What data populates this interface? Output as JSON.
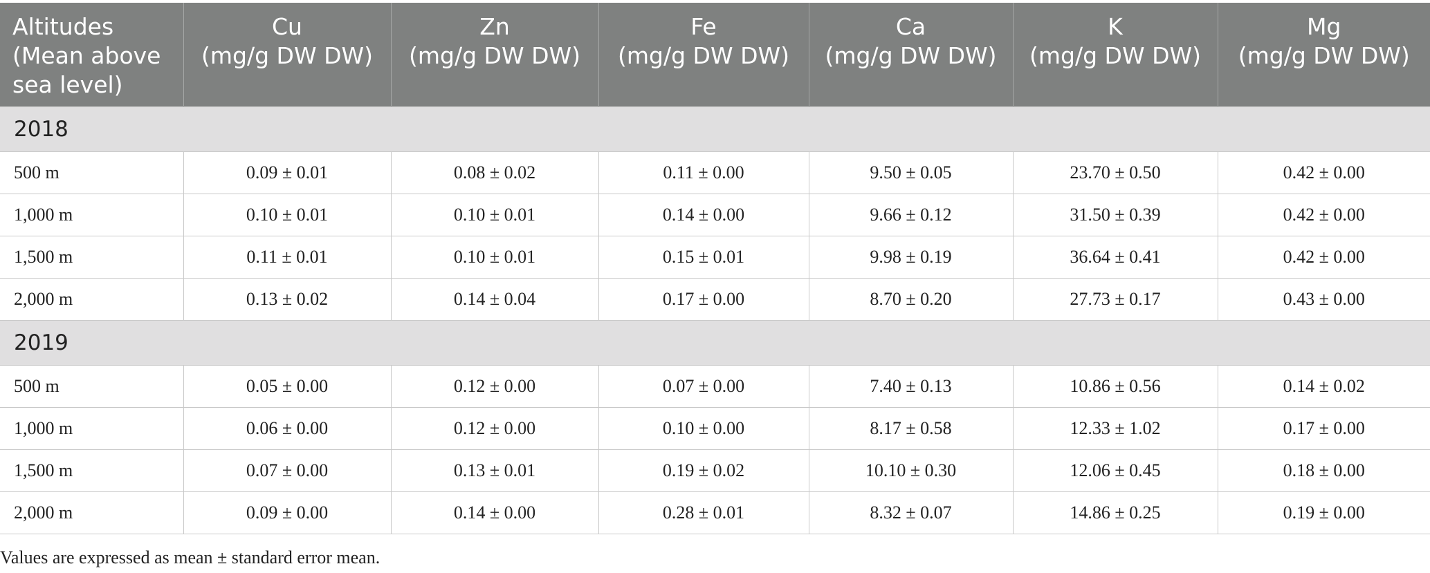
{
  "table": {
    "headers": [
      {
        "lines": [
          "Altitudes",
          "(Mean above",
          "sea level)"
        ]
      },
      {
        "lines": [
          "Cu",
          "(mg/g DW DW)"
        ]
      },
      {
        "lines": [
          "Zn",
          "(mg/g DW DW)"
        ]
      },
      {
        "lines": [
          "Fe",
          "(mg/g DW DW)"
        ]
      },
      {
        "lines": [
          "Ca",
          "(mg/g DW DW)"
        ]
      },
      {
        "lines": [
          "K",
          "(mg/g DW DW)"
        ]
      },
      {
        "lines": [
          "Mg",
          "(mg/g DW DW)"
        ]
      }
    ],
    "sections": [
      {
        "year": "2018",
        "rows": [
          [
            "500 m",
            "0.09 ± 0.01",
            "0.08 ± 0.02",
            "0.11 ± 0.00",
            "9.50 ± 0.05",
            "23.70 ± 0.50",
            "0.42 ± 0.00"
          ],
          [
            "1,000 m",
            "0.10 ± 0.01",
            "0.10 ± 0.01",
            "0.14 ± 0.00",
            "9.66 ± 0.12",
            "31.50 ± 0.39",
            "0.42 ± 0.00"
          ],
          [
            "1,500 m",
            "0.11 ± 0.01",
            "0.10 ± 0.01",
            "0.15 ± 0.01",
            "9.98 ± 0.19",
            "36.64 ± 0.41",
            "0.42 ± 0.00"
          ],
          [
            "2,000 m",
            "0.13 ± 0.02",
            "0.14 ± 0.04",
            "0.17 ± 0.00",
            "8.70 ± 0.20",
            "27.73 ± 0.17",
            "0.43 ± 0.00"
          ]
        ]
      },
      {
        "year": "2019",
        "rows": [
          [
            "500 m",
            "0.05 ± 0.00",
            "0.12 ± 0.00",
            "0.07 ± 0.00",
            "7.40 ± 0.13",
            "10.86 ± 0.56",
            "0.14 ± 0.02"
          ],
          [
            "1,000 m",
            "0.06 ± 0.00",
            "0.12 ± 0.00",
            "0.10 ± 0.00",
            "8.17 ± 0.58",
            "12.33 ± 1.02",
            "0.17 ± 0.00"
          ],
          [
            "1,500 m",
            "0.07 ± 0.00",
            "0.13 ± 0.01",
            "0.19 ± 0.02",
            "10.10 ± 0.30",
            "12.06 ± 0.45",
            "0.18 ± 0.00"
          ],
          [
            "2,000 m",
            "0.09 ± 0.00",
            "0.14 ± 0.00",
            "0.28 ± 0.01",
            "8.32 ± 0.07",
            "14.86 ± 0.25",
            "0.19 ± 0.00"
          ]
        ]
      }
    ]
  },
  "footnote": "Values are expressed as mean ± standard error mean."
}
